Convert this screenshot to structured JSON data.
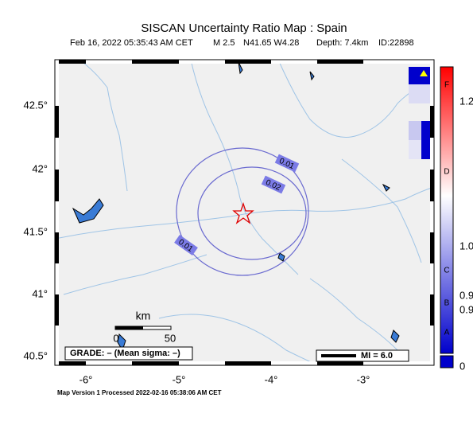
{
  "header": {
    "title": "SISCAN Uncertainty Ratio Map : Spain",
    "date": "Feb 16, 2022 05:35:43 AM CET",
    "magnitude": "M 2.5",
    "location": "N41.65 W4.28",
    "depth": "Depth: 7.4km",
    "id": "ID:22898"
  },
  "map": {
    "lat_labels": [
      "42.5°",
      "42°",
      "41.5°",
      "41°",
      "40.5°"
    ],
    "lon_labels": [
      "-6°",
      "-5°",
      "-4°",
      "-3°"
    ],
    "contour_labels": [
      "0.01",
      "0.02",
      "0.01"
    ],
    "scale": {
      "unit": "km",
      "start": "0",
      "end": "50"
    },
    "grade": "GRADE: – (Mean sigma: –)",
    "mi_legend": "MI = 6.0"
  },
  "colorbar": {
    "labels": [
      "1.2",
      "F",
      "D",
      "1.0",
      "C",
      "0.9",
      "B",
      "0.9",
      "A",
      "0"
    ]
  },
  "footer": "Map Version 1 Processed 2022-02-16 05:38:06 AM CET"
}
